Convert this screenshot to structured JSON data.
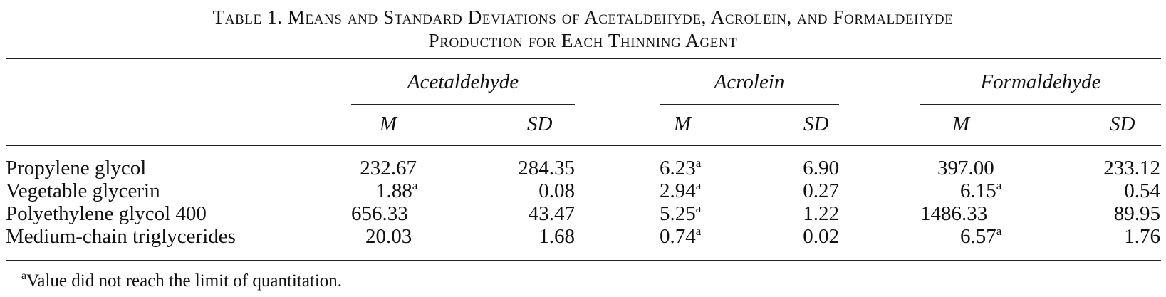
{
  "caption": {
    "line1": "Table 1. Means and Standard Deviations of Acetaldehyde, Acrolein, and Formaldehyde",
    "line2": "Production for Each Thinning Agent"
  },
  "groups": {
    "acetaldehyde": "Acetaldehyde",
    "acrolein": "Acrolein",
    "formaldehyde": "Formaldehyde"
  },
  "subheaders": {
    "m": "M",
    "sd": "SD"
  },
  "rows": [
    {
      "label": "Propylene glycol",
      "acet_m": "232.67",
      "acet_m_sup": "",
      "acet_sd": "284.35",
      "acro_m": "6.23",
      "acro_m_sup": "a",
      "acro_sd": "6.90",
      "form_m": "397.00",
      "form_m_sup": "",
      "form_sd": "233.12"
    },
    {
      "label": "Vegetable glycerin",
      "acet_m": "1.88",
      "acet_m_sup": "a",
      "acet_sd": "0.08",
      "acro_m": "2.94",
      "acro_m_sup": "a",
      "acro_sd": "0.27",
      "form_m": "6.15",
      "form_m_sup": "a",
      "form_sd": "0.54"
    },
    {
      "label": "Polyethylene glycol 400",
      "acet_m": "656.33",
      "acet_m_sup": "",
      "acet_sd": "43.47",
      "acro_m": "5.25",
      "acro_m_sup": "a",
      "acro_sd": "1.22",
      "form_m": "1486.33",
      "form_m_sup": "",
      "form_sd": "89.95"
    },
    {
      "label": "Medium-chain triglycerides",
      "acet_m": "20.03",
      "acet_m_sup": "",
      "acet_sd": "1.68",
      "acro_m": "0.74",
      "acro_m_sup": "a",
      "acro_sd": "0.02",
      "form_m": "6.57",
      "form_m_sup": "a",
      "form_sd": "1.76"
    }
  ],
  "footnote": {
    "mark": "a",
    "text": "Value did not reach the limit of quantitation."
  }
}
